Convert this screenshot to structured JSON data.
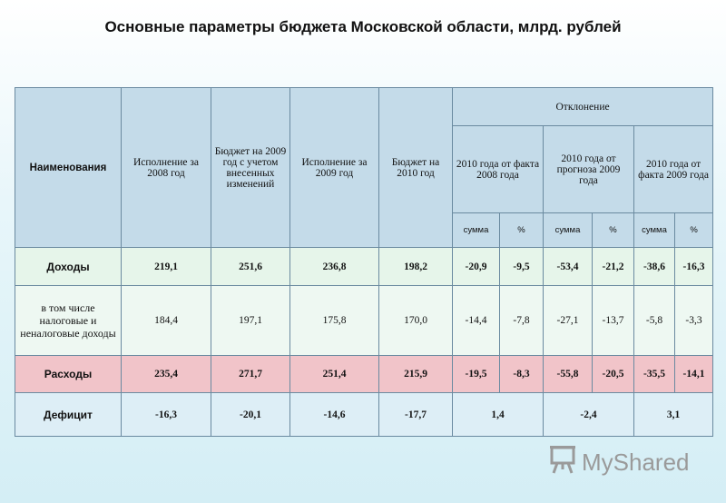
{
  "title": "Основные параметры бюджета Московской области, млрд. рублей",
  "headers": {
    "name": "Наименования",
    "exec2008": "Исполнение за 2008 год",
    "budget2009": "Бюджет на 2009 год с учетом внесенных изменений",
    "exec2009": "Исполнение за 2009 год",
    "budget2010": "Бюджет на 2010 год",
    "deviation": "Отклонение",
    "dev1": "2010 года от факта 2008 года",
    "dev2": "2010 года от прогноза 2009 года",
    "dev3": "2010 года от факта 2009 года",
    "sum": "сумма",
    "pct": "%"
  },
  "rows": [
    {
      "name": "Доходы",
      "cells": [
        "219,1",
        "251,6",
        "236,8",
        "198,2",
        "-20,9",
        "-9,5",
        "-53,4",
        "-21,2",
        "-38,6",
        "-16,3"
      ]
    },
    {
      "name": "в том числе налоговые и неналоговые доходы",
      "cells": [
        "184,4",
        "197,1",
        "175,8",
        "170,0",
        "-14,4",
        "-7,8",
        "-27,1",
        "-13,7",
        "-5,8",
        "-3,3"
      ]
    },
    {
      "name": "Расходы",
      "cells": [
        "235,4",
        "271,7",
        "251,4",
        "215,9",
        "-19,5",
        "-8,3",
        "-55,8",
        "-20,5",
        "-35,5",
        "-14,1"
      ]
    },
    {
      "name": "Дефицит",
      "cells": [
        "-16,3",
        "-20,1",
        "-14,6",
        "-17,7",
        "1,4",
        "",
        "-2,4",
        "",
        "3,1",
        ""
      ]
    }
  ],
  "logo": {
    "icon": "presentation-board-icon",
    "text": "MyShared"
  }
}
